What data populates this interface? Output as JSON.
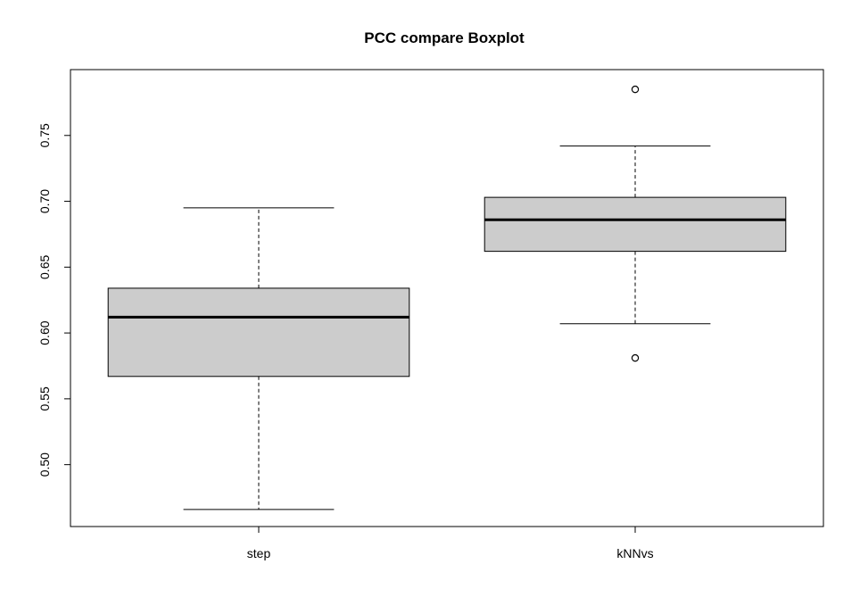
{
  "chart_data": {
    "type": "boxplot",
    "title": "PCC compare Boxplot",
    "xlabel": "",
    "ylabel": "",
    "categories": [
      "step",
      "kNNvs"
    ],
    "ylim": [
      0.453,
      0.8
    ],
    "y_ticks": [
      0.5,
      0.55,
      0.6,
      0.65,
      0.7,
      0.75
    ],
    "y_tick_labels": [
      "0.50",
      "0.55",
      "0.60",
      "0.65",
      "0.70",
      "0.75"
    ],
    "grid": false,
    "box_color": "#cccccc",
    "boxes": [
      {
        "category": "step",
        "whisker_low": 0.466,
        "q1": 0.567,
        "median": 0.612,
        "q3": 0.634,
        "whisker_high": 0.695,
        "outliers": []
      },
      {
        "category": "kNNvs",
        "whisker_low": 0.607,
        "q1": 0.662,
        "median": 0.686,
        "q3": 0.703,
        "whisker_high": 0.742,
        "outliers": [
          0.785,
          0.581
        ]
      }
    ]
  }
}
